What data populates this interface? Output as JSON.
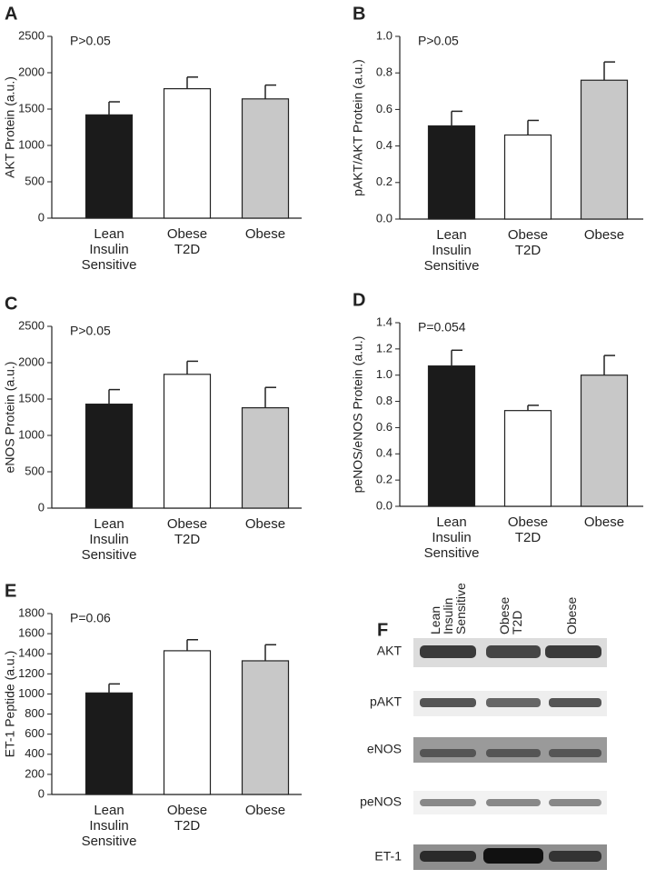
{
  "chart_data": [
    {
      "type": "bar",
      "panel": "A",
      "annotation": "P>0.05",
      "ylabel": "AKT Protein (a.u.)",
      "categories": [
        "Lean Insulin Sensitive",
        "Obese T2D",
        "Obese"
      ],
      "colors": [
        "#1b1b1b",
        "#ffffff",
        "#c8c8c8"
      ],
      "values": [
        1420,
        1780,
        1640
      ],
      "errors": [
        180,
        160,
        190
      ],
      "ylim": [
        0,
        2500
      ],
      "yticks": [
        0,
        500,
        1000,
        1500,
        2000,
        2500
      ]
    },
    {
      "type": "bar",
      "panel": "B",
      "annotation": "P>0.05",
      "ylabel": "pAKT/AKT Protein (a.u.)",
      "categories": [
        "Lean Insulin Sensitive",
        "Obese T2D",
        "Obese"
      ],
      "colors": [
        "#1b1b1b",
        "#ffffff",
        "#c8c8c8"
      ],
      "values": [
        0.51,
        0.46,
        0.76
      ],
      "errors": [
        0.08,
        0.08,
        0.1
      ],
      "ylim": [
        0,
        1
      ],
      "yticks": [
        {
          "value": 0,
          "label": "0.0"
        },
        0.2,
        0.4,
        0.6,
        0.8,
        {
          "value": 1,
          "label": "1.0"
        }
      ]
    },
    {
      "type": "bar",
      "panel": "C",
      "annotation": "P>0.05",
      "ylabel": "eNOS Protein (a.u.)",
      "categories": [
        "Lean Insulin Sensitive",
        "Obese T2D",
        "Obese"
      ],
      "colors": [
        "#1b1b1b",
        "#ffffff",
        "#c8c8c8"
      ],
      "values": [
        1430,
        1840,
        1380
      ],
      "errors": [
        200,
        180,
        280
      ],
      "ylim": [
        0,
        2500
      ],
      "yticks": [
        0,
        500,
        1000,
        1500,
        2000,
        2500
      ]
    },
    {
      "type": "bar",
      "panel": "D",
      "annotation": "P=0.054",
      "ylabel": "peNOS/eNOS Protein (a.u.)",
      "categories": [
        "Lean Insulin Sensitive",
        "Obese T2D",
        "Obese"
      ],
      "colors": [
        "#1b1b1b",
        "#ffffff",
        "#c8c8c8"
      ],
      "values": [
        1.07,
        0.73,
        1.0
      ],
      "errors": [
        0.12,
        0.04,
        0.15
      ],
      "ylim": [
        0,
        1.4
      ],
      "yticks": [
        {
          "value": 0,
          "label": "0.0"
        },
        0.2,
        0.4,
        0.6,
        0.8,
        {
          "value": 1,
          "label": "1.0"
        },
        1.2,
        1.4
      ]
    },
    {
      "type": "bar",
      "panel": "E",
      "annotation": "P=0.06",
      "ylabel": "ET-1 Peptide (a.u.)",
      "categories": [
        "Lean Insulin Sensitive",
        "Obese T2D",
        "Obese"
      ],
      "colors": [
        "#1b1b1b",
        "#ffffff",
        "#c8c8c8"
      ],
      "values": [
        1010,
        1430,
        1330
      ],
      "errors": [
        90,
        110,
        160
      ],
      "ylim": [
        0,
        1800
      ],
      "yticks": [
        0,
        200,
        400,
        600,
        800,
        1000,
        1200,
        1400,
        1600,
        1800
      ]
    }
  ],
  "blot": {
    "panel": "F",
    "columns": [
      "Lean Insulin Sensitive",
      "Obese T2D",
      "Obese"
    ],
    "rows": [
      "AKT",
      "pAKT",
      "eNOS",
      "peNOS",
      "ET-1"
    ]
  }
}
